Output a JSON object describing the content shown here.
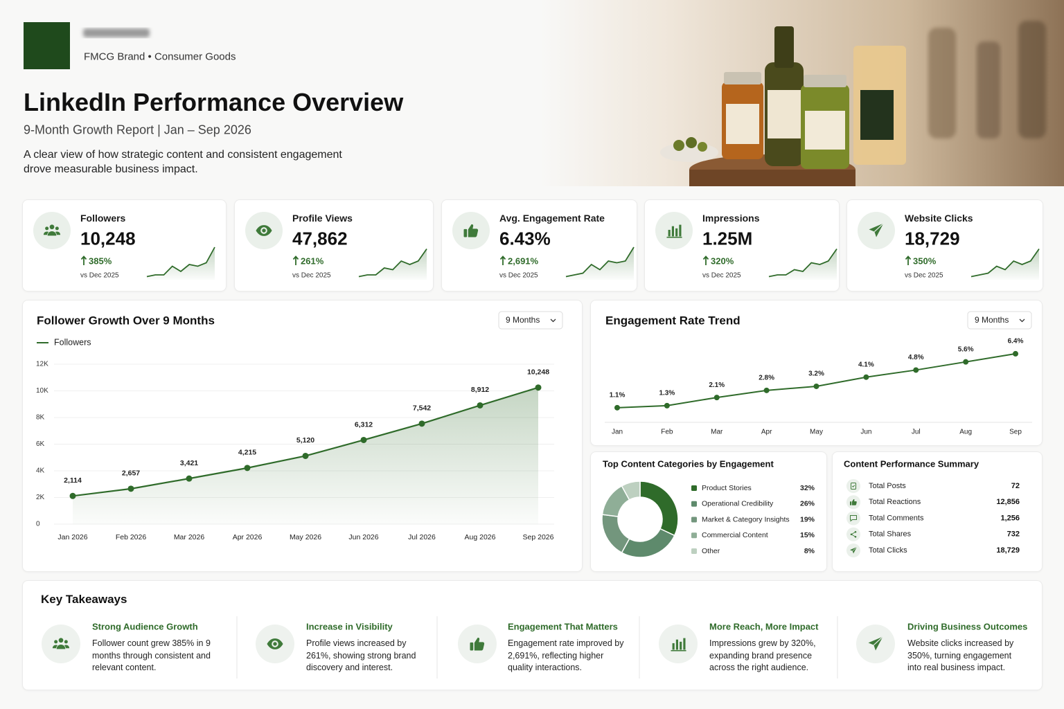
{
  "header": {
    "brand_subtitle": "FMCG Brand • Consumer Goods",
    "title": "LinkedIn Performance Overview",
    "subtitle": "9-Month Growth Report | Jan – Sep 2026",
    "description": "A clear view of how strategic content and consistent engagement drove measurable business impact."
  },
  "kpis": [
    {
      "label": "Followers",
      "value": "10,248",
      "change": "385%",
      "note": "vs Dec 2025",
      "trend": [
        0.5,
        1,
        1,
        3.5,
        2,
        4,
        3.5,
        4.5,
        9
      ]
    },
    {
      "label": "Profile Views",
      "value": "47,862",
      "change": "261%",
      "note": "vs Dec 2025",
      "trend": [
        0.5,
        1,
        1,
        3,
        2.5,
        5,
        4,
        5,
        8.5
      ]
    },
    {
      "label": "Avg. Engagement Rate",
      "value": "6.43%",
      "change": "2,691%",
      "note": "vs Dec 2025",
      "trend": [
        0.5,
        1,
        1.5,
        4,
        2.5,
        5,
        4.5,
        5,
        9
      ]
    },
    {
      "label": "Impressions",
      "value": "1.25M",
      "change": "320%",
      "note": "vs Dec 2025",
      "trend": [
        0.5,
        1,
        1,
        2.5,
        2,
        4.5,
        4,
        5,
        8.5
      ]
    },
    {
      "label": "Website Clicks",
      "value": "18,729",
      "change": "350%",
      "note": "vs Dec 2025",
      "trend": [
        0.5,
        1,
        1.5,
        3.5,
        2.5,
        5,
        4,
        5,
        8.5
      ]
    }
  ],
  "chart_data": [
    {
      "type": "line",
      "title": "Follower Growth Over 9 Months",
      "dropdown": "9 Months",
      "categories": [
        "Jan 2026",
        "Feb 2026",
        "Mar 2026",
        "Apr 2026",
        "May 2026",
        "Jun 2026",
        "Jul 2026",
        "Aug 2026",
        "Sep 2026"
      ],
      "series": [
        {
          "name": "Followers",
          "color": "#2f6b2a",
          "values": [
            2114,
            2657,
            3421,
            4215,
            5120,
            6312,
            7542,
            8912,
            10248
          ],
          "value_labels": [
            "2,114",
            "2,657",
            "3,421",
            "4,215",
            "5,120",
            "6,312",
            "7,542",
            "8,912",
            "10,248"
          ]
        }
      ],
      "ylim": [
        0,
        12000
      ],
      "yticks": [
        0,
        {
          "value": 2000,
          "label": "2K"
        },
        {
          "value": 4000,
          "label": "4K"
        },
        {
          "value": 6000,
          "label": "6K"
        },
        {
          "value": 8000,
          "label": "8K"
        },
        {
          "value": 10000,
          "label": "10K"
        },
        {
          "value": 12000,
          "label": "12K"
        }
      ],
      "grid": true,
      "area": true
    },
    {
      "type": "line",
      "title": "Engagement Rate Trend",
      "dropdown": "9 Months",
      "categories": [
        "Jan",
        "Feb",
        "Mar",
        "Apr",
        "May",
        "Jun",
        "Jul",
        "Aug",
        "Sep"
      ],
      "series": [
        {
          "color": "#2f6b2a",
          "values": [
            1.1,
            1.3,
            2.1,
            2.8,
            3.2,
            4.1,
            4.8,
            5.6,
            6.4
          ],
          "value_labels": [
            "1.1%",
            "1.3%",
            "2.1%",
            "2.8%",
            "3.2%",
            "4.1%",
            "4.8%",
            "5.6%",
            "6.4%"
          ]
        }
      ]
    },
    {
      "type": "pie",
      "title": "Top Content Categories by Engagement",
      "donut": true,
      "categories": [
        "Product Stories",
        "Operational Credibility",
        "Market & Category Insights",
        "Commercial Content",
        "Other"
      ],
      "values": [
        32,
        26,
        19,
        15,
        8
      ],
      "value_labels": [
        "32%",
        "26%",
        "19%",
        "15%",
        "8%"
      ],
      "colors": [
        "#2f6b2a",
        "#5e8a6c",
        "#73967d",
        "#8fae97",
        "#bdd0c0"
      ]
    }
  ],
  "summary": {
    "title": "Content Performance Summary",
    "rows": [
      {
        "label": "Total Posts",
        "value": "72"
      },
      {
        "label": "Total Reactions",
        "value": "12,856"
      },
      {
        "label": "Total Comments",
        "value": "1,256"
      },
      {
        "label": "Total Shares",
        "value": "732"
      },
      {
        "label": "Total Clicks",
        "value": "18,729"
      }
    ]
  },
  "takeaways": {
    "title": "Key Takeaways",
    "items": [
      {
        "title": "Strong Audience Growth",
        "text": "Follower count grew 385% in 9 months through consistent and relevant content."
      },
      {
        "title": "Increase in Visibility",
        "text": "Profile views increased by 261%, showing strong brand discovery and interest."
      },
      {
        "title": "Engagement That Matters",
        "text": "Engagement rate improved by 2,691%, reflecting higher quality interactions."
      },
      {
        "title": "More Reach, More Impact",
        "text": "Impressions grew by 320%, expanding brand presence across the right audience."
      },
      {
        "title": "Driving Business Outcomes",
        "text": "Website clicks increased by 350%, turning engagement into real business impact."
      }
    ]
  }
}
